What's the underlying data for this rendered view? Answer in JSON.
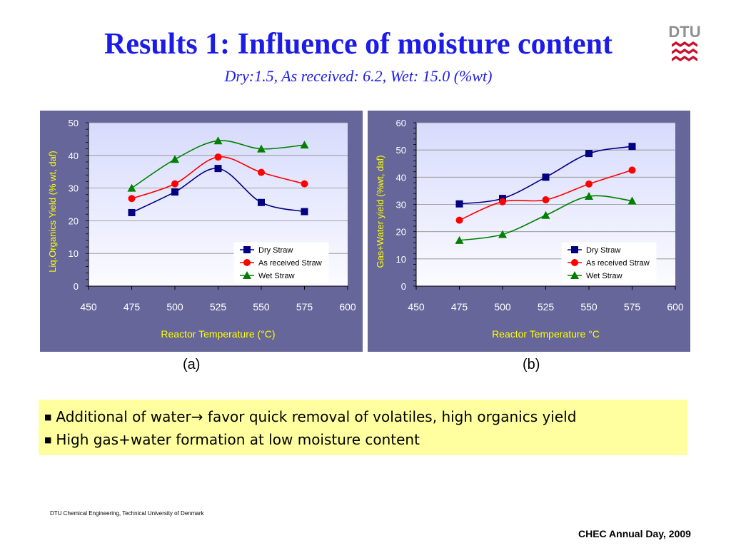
{
  "slide": {
    "title": "Results 1: Influence of moisture content",
    "subtitle": "Dry:1.5, As received: 6.2, Wet: 15.0 (%wt)",
    "logo_text": "DTU",
    "bullets": [
      {
        "before": "Additional of water",
        "arrow": "→",
        "after": " favor quick removal of volatiles, high organics  yield"
      },
      {
        "before": "High gas+water formation at low moisture content",
        "arrow": "",
        "after": ""
      }
    ],
    "footer_left": "DTU Chemical Engineering, Technical University of Denmark",
    "footer_right": "CHEC Annual Day, 2009"
  },
  "colors": {
    "title": "#1c1ce8",
    "panel_bg": "#66669a",
    "plot_bg_top": "#d7dbfc",
    "plot_bg_bottom": "#fbfbff",
    "axis_label": "#ffff00",
    "tick_label": "#ffffff",
    "note_bg": "#ffffa0"
  },
  "chart_data": [
    {
      "id": "a",
      "type": "line",
      "caption": "(a)",
      "xlabel": "Reactor Temperature (°C)",
      "ylabel": "Liq.Organics Yield (% wt, daf)",
      "xlim": [
        450,
        600
      ],
      "ylim": [
        0,
        50
      ],
      "xticks": [
        "450",
        "475",
        "500",
        "525",
        "550",
        "575",
        "600"
      ],
      "yticks": [
        "0",
        "10",
        "20",
        "30",
        "40",
        "50"
      ],
      "grid": "horizontal",
      "legend_position": "bottom-right",
      "x": [
        475,
        500,
        525,
        550,
        575
      ],
      "series": [
        {
          "name": "Dry Straw",
          "color": "#000080",
          "marker": "square",
          "values": [
            22.5,
            28.8,
            36.0,
            25.6,
            22.8
          ]
        },
        {
          "name": "As received Straw",
          "color": "#ff0000",
          "marker": "circle",
          "values": [
            26.8,
            31.3,
            39.5,
            34.8,
            31.3
          ]
        },
        {
          "name": "Wet Straw",
          "color": "#008000",
          "marker": "triangle",
          "values": [
            30.0,
            38.8,
            44.5,
            42.0,
            43.2
          ]
        }
      ]
    },
    {
      "id": "b",
      "type": "line",
      "caption": "(b)",
      "xlabel": "Reactor Temperature °C",
      "ylabel": "Gas+Water yield (%wt, daf)",
      "xlim": [
        450,
        600
      ],
      "ylim": [
        0,
        60
      ],
      "xticks": [
        "450",
        "475",
        "500",
        "525",
        "550",
        "575",
        "600"
      ],
      "yticks": [
        "0",
        "10",
        "20",
        "30",
        "40",
        "50",
        "60"
      ],
      "grid": "horizontal",
      "legend_position": "bottom-right",
      "x": [
        475,
        500,
        525,
        550,
        575
      ],
      "series": [
        {
          "name": "Dry Straw",
          "color": "#000080",
          "marker": "square",
          "values": [
            30.2,
            32.2,
            40.0,
            48.7,
            51.3
          ]
        },
        {
          "name": "As received Straw",
          "color": "#ff0000",
          "marker": "circle",
          "values": [
            24.2,
            31.0,
            31.7,
            37.5,
            42.6
          ]
        },
        {
          "name": "Wet Straw",
          "color": "#008000",
          "marker": "triangle",
          "values": [
            16.8,
            19.0,
            26.0,
            33.0,
            31.3
          ]
        }
      ]
    }
  ]
}
